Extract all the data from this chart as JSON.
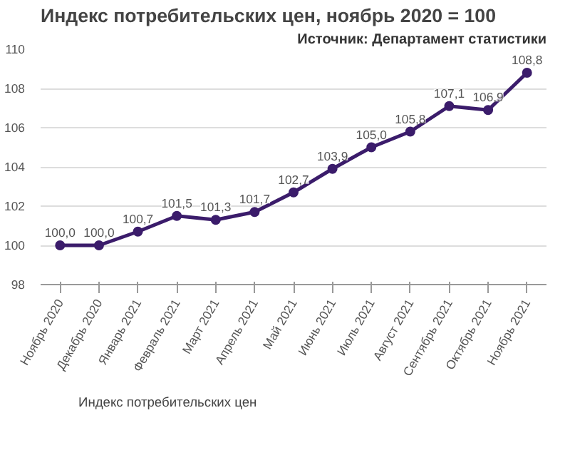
{
  "chart_data": {
    "type": "line",
    "title": "Индекс потребительских цен, ноябрь 2020 = 100",
    "annotations": [
      "Источник: Департамент статистики"
    ],
    "categories": [
      "Ноябрь 2020",
      "Декабрь 2020",
      "Январь 2021",
      "Февраль 2021",
      "Март 2021",
      "Апрель 2021",
      "Май 2021",
      "Июнь 2021",
      "Июль 2021",
      "Август 2021",
      "Сентябрь 2021",
      "Октябрь 2021",
      "Ноябрь 2021"
    ],
    "series": [
      {
        "name": "Индекс потребительских цен",
        "color": "#3b1c6b",
        "values": [
          100.0,
          100.0,
          100.7,
          101.5,
          101.3,
          101.7,
          102.7,
          103.9,
          105.0,
          105.8,
          107.1,
          106.9,
          108.8
        ],
        "value_labels": [
          "100,0",
          "100,0",
          "100,7",
          "101,5",
          "101,3",
          "101,7",
          "102,7",
          "103,9",
          "105,0",
          "105,8",
          "107,1",
          "106,9",
          "108,8"
        ]
      }
    ],
    "ylim": [
      98,
      110
    ],
    "yticks": [
      98,
      100,
      102,
      104,
      106,
      108,
      110
    ],
    "grid": "y",
    "legend": "bottom",
    "marker": "circle",
    "line_style": "solid"
  }
}
